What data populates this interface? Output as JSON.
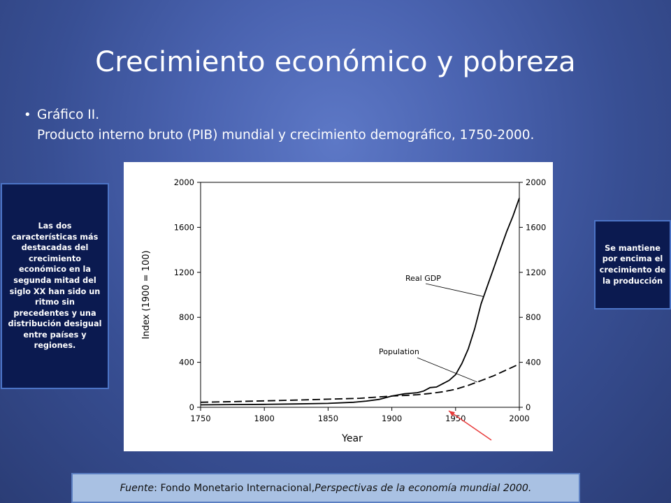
{
  "slide": {
    "title": "Crecimiento económico y pobreza",
    "bullet_line1": "Gráfico II.",
    "bullet_line2": "Producto interno bruto (PIB) mundial y crecimiento demográfico, 1750-2000."
  },
  "notes": {
    "left": "Las dos características más destacadas del crecimiento económico en la segunda mitad del siglo XX han sido un ritmo sin precedentes y una distribución desigual entre países y regiones.",
    "right": "Se mantiene por encima el crecimiento de la producción"
  },
  "source": {
    "label": "Fuente",
    "sep": ": Fondo Monetario Internacional, ",
    "publication": "Perspectivas de la economía mundial 2000."
  },
  "chart_data": {
    "type": "line",
    "xlabel": "Year",
    "ylabel": "Index (1900 = 100)",
    "xlim": [
      1750,
      2000
    ],
    "ylim": [
      0,
      2000
    ],
    "x_ticks": [
      1750,
      1800,
      1850,
      1900,
      1950,
      2000
    ],
    "y_ticks": [
      0,
      400,
      800,
      1200,
      1600,
      2000
    ],
    "y2_ticks": [
      0,
      400,
      800,
      1200,
      1600,
      2000
    ],
    "grid": false,
    "series": [
      {
        "name": "Real GDP",
        "style": "solid",
        "x": [
          1750,
          1775,
          1800,
          1825,
          1850,
          1870,
          1880,
          1890,
          1900,
          1910,
          1920,
          1925,
          1930,
          1935,
          1940,
          1945,
          1950,
          1955,
          1960,
          1965,
          1970,
          1975,
          1980,
          1985,
          1990,
          1995,
          2000
        ],
        "y": [
          22,
          24,
          26,
          30,
          35,
          45,
          55,
          70,
          100,
          120,
          130,
          145,
          175,
          180,
          210,
          240,
          290,
          390,
          520,
          700,
          920,
          1080,
          1240,
          1400,
          1560,
          1700,
          1860
        ]
      },
      {
        "name": "Population",
        "style": "dashed",
        "x": [
          1750,
          1775,
          1800,
          1825,
          1850,
          1875,
          1900,
          1910,
          1920,
          1930,
          1940,
          1950,
          1960,
          1970,
          1980,
          1990,
          2000
        ],
        "y": [
          45,
          50,
          57,
          64,
          72,
          80,
          100,
          105,
          112,
          123,
          138,
          160,
          195,
          237,
          281,
          333,
          385
        ]
      }
    ],
    "annotations": [
      {
        "text": "Real GDP",
        "target": "Real GDP",
        "at_x": 1972
      },
      {
        "text": "Population",
        "target": "Population",
        "at_x": 1967
      }
    ]
  }
}
